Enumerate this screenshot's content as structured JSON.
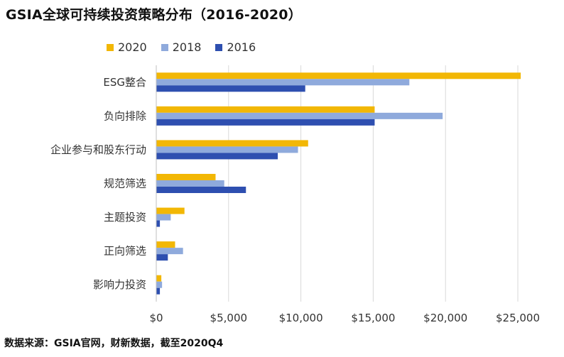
{
  "chart_data": {
    "type": "bar",
    "orientation": "horizontal",
    "title": "GSIA全球可持续投资策略分布（2016-2020）",
    "categories": [
      "ESG整合",
      "负向排除",
      "企业参与和股东行动",
      "规范筛选",
      "主题投资",
      "正向筛选",
      "影响力投资"
    ],
    "series": [
      {
        "name": "2020",
        "color": "#F2B705",
        "values": [
          25200,
          15100,
          10500,
          4100,
          1950,
          1300,
          350
        ]
      },
      {
        "name": "2018",
        "color": "#8FAADC",
        "values": [
          17500,
          19800,
          9800,
          4700,
          1000,
          1850,
          400
        ]
      },
      {
        "name": "2016",
        "color": "#2E4FB0",
        "values": [
          10300,
          15100,
          8400,
          6200,
          250,
          800,
          250
        ]
      }
    ],
    "xlim": [
      0,
      25000
    ],
    "xticks": [
      0,
      5000,
      10000,
      15000,
      20000,
      25000
    ],
    "xtick_labels": [
      "$0",
      "$5,000",
      "$10,000",
      "$15,000",
      "$20,000",
      "$25,000"
    ],
    "grid": true,
    "legend_position": "top",
    "source": "数据来源：GSIA官网，财新数据，截至2020Q4"
  }
}
